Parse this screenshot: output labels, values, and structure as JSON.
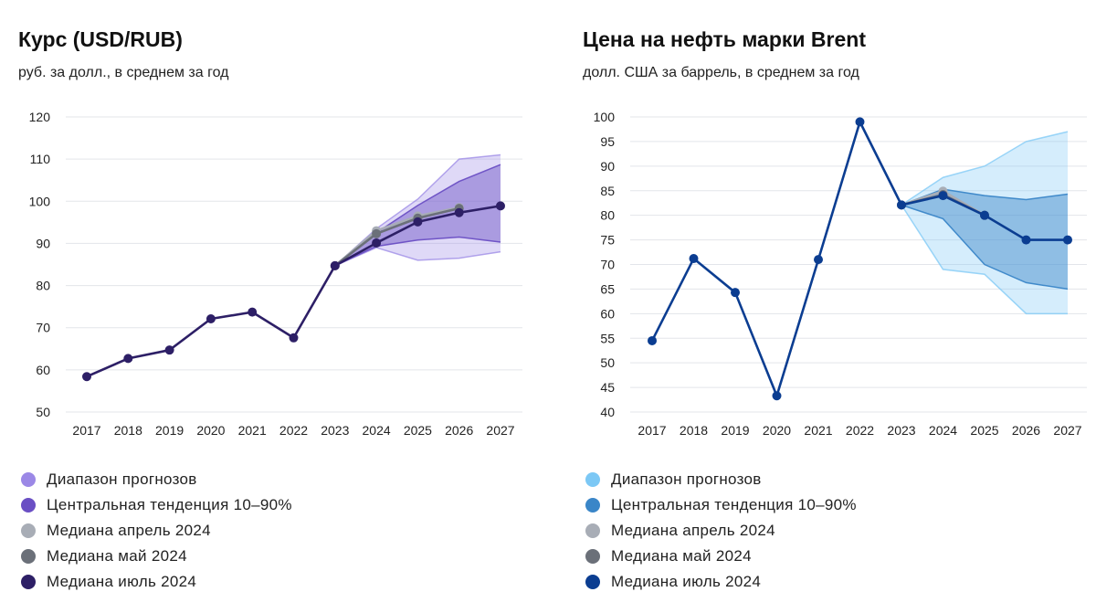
{
  "chart_data": [
    {
      "type": "line",
      "title": "Курс (USD/RUB)",
      "subtitle": "руб. за долл., в среднем за год",
      "x": [
        "2017",
        "2018",
        "2019",
        "2020",
        "2021",
        "2022",
        "2023",
        "2024",
        "2025",
        "2026",
        "2027"
      ],
      "y_ticks": [
        "50",
        "60",
        "70",
        "80",
        "90",
        "100",
        "110",
        "120"
      ],
      "ylim": [
        50,
        120
      ],
      "grid": true,
      "colors": {
        "range": "#9b88e6",
        "central": "#6a4fc4",
        "median_april": "#a8adb6",
        "median_may": "#6b7079",
        "median_july": "#2d1f66"
      },
      "series": [
        {
          "name": "Диапазон прогнозов",
          "kind": "band",
          "x": [
            "2023",
            "2024",
            "2025",
            "2026",
            "2027"
          ],
          "low": [
            84.7,
            89.0,
            86.0,
            86.5,
            88.0
          ],
          "high": [
            84.7,
            93.5,
            100.5,
            110.0,
            111.0
          ]
        },
        {
          "name": "Центральная тенденция 10–90%",
          "kind": "band",
          "x": [
            "2023",
            "2024",
            "2025",
            "2026",
            "2027"
          ],
          "low": [
            84.7,
            89.3,
            90.8,
            91.5,
            90.3
          ],
          "high": [
            84.7,
            92.5,
            99.0,
            104.7,
            108.7
          ]
        },
        {
          "name": "Медиана апрель 2024",
          "kind": "line",
          "x": [
            "2023",
            "2024",
            "2025",
            "2026"
          ],
          "values": [
            84.7,
            93.0,
            96.5,
            98.5
          ]
        },
        {
          "name": "Медиана май 2024",
          "kind": "line",
          "x": [
            "2023",
            "2024",
            "2025",
            "2026"
          ],
          "values": [
            84.7,
            92.3,
            96.0,
            98.3
          ]
        },
        {
          "name": "Медиана июль 2024",
          "kind": "line",
          "x": [
            "2017",
            "2018",
            "2019",
            "2020",
            "2021",
            "2022",
            "2023",
            "2024",
            "2025",
            "2026",
            "2027"
          ],
          "values": [
            58.4,
            62.7,
            64.7,
            72.1,
            73.7,
            67.6,
            84.7,
            90.1,
            95.1,
            97.3,
            98.9
          ]
        }
      ]
    },
    {
      "type": "line",
      "title": "Цена на нефть марки Brent",
      "subtitle": "долл. США за баррель, в среднем за год",
      "x": [
        "2017",
        "2018",
        "2019",
        "2020",
        "2021",
        "2022",
        "2023",
        "2024",
        "2025",
        "2026",
        "2027"
      ],
      "y_ticks": [
        "40",
        "45",
        "50",
        "55",
        "60",
        "65",
        "70",
        "75",
        "80",
        "85",
        "90",
        "95",
        "100"
      ],
      "ylim": [
        40,
        100
      ],
      "grid": true,
      "colors": {
        "range": "#7cc8f5",
        "central": "#3a86c8",
        "median_april": "#a8adb6",
        "median_may": "#6b7079",
        "median_july": "#0b3d91"
      },
      "series": [
        {
          "name": "Диапазон прогнозов",
          "kind": "band",
          "x": [
            "2023",
            "2024",
            "2025",
            "2026",
            "2027"
          ],
          "low": [
            82.1,
            69.0,
            68.0,
            60.0,
            60.0
          ],
          "high": [
            82.1,
            87.7,
            90.0,
            95.0,
            97.0
          ]
        },
        {
          "name": "Центральная тенденция 10–90%",
          "kind": "band",
          "x": [
            "2023",
            "2024",
            "2025",
            "2026",
            "2027"
          ],
          "low": [
            82.1,
            79.3,
            70.0,
            66.3,
            65.0
          ],
          "high": [
            82.1,
            85.3,
            84.0,
            83.2,
            84.3
          ]
        },
        {
          "name": "Медиана апрель 2024",
          "kind": "line",
          "x": [
            "2023",
            "2024",
            "2025"
          ],
          "values": [
            82.1,
            84.9,
            80.0
          ]
        },
        {
          "name": "Медиана май 2024",
          "kind": "line",
          "x": [
            "2023",
            "2024",
            "2025"
          ],
          "values": [
            82.1,
            84.2,
            80.0
          ]
        },
        {
          "name": "Медиана июль 2024",
          "kind": "line",
          "x": [
            "2017",
            "2018",
            "2019",
            "2020",
            "2021",
            "2022",
            "2023",
            "2024",
            "2025",
            "2026",
            "2027"
          ],
          "values": [
            54.5,
            71.2,
            64.3,
            43.3,
            71.0,
            99.0,
            82.1,
            84.0,
            80.0,
            75.0,
            75.0
          ]
        }
      ]
    }
  ],
  "legend": [
    {
      "label": "Диапазон прогнозов",
      "key": "range"
    },
    {
      "label": "Центральная тенденция 10–90%",
      "key": "central"
    },
    {
      "label": "Медиана апрель 2024",
      "key": "median_april"
    },
    {
      "label": "Медиана май 2024",
      "key": "median_may"
    },
    {
      "label": "Медиана июль 2024",
      "key": "median_july"
    }
  ]
}
